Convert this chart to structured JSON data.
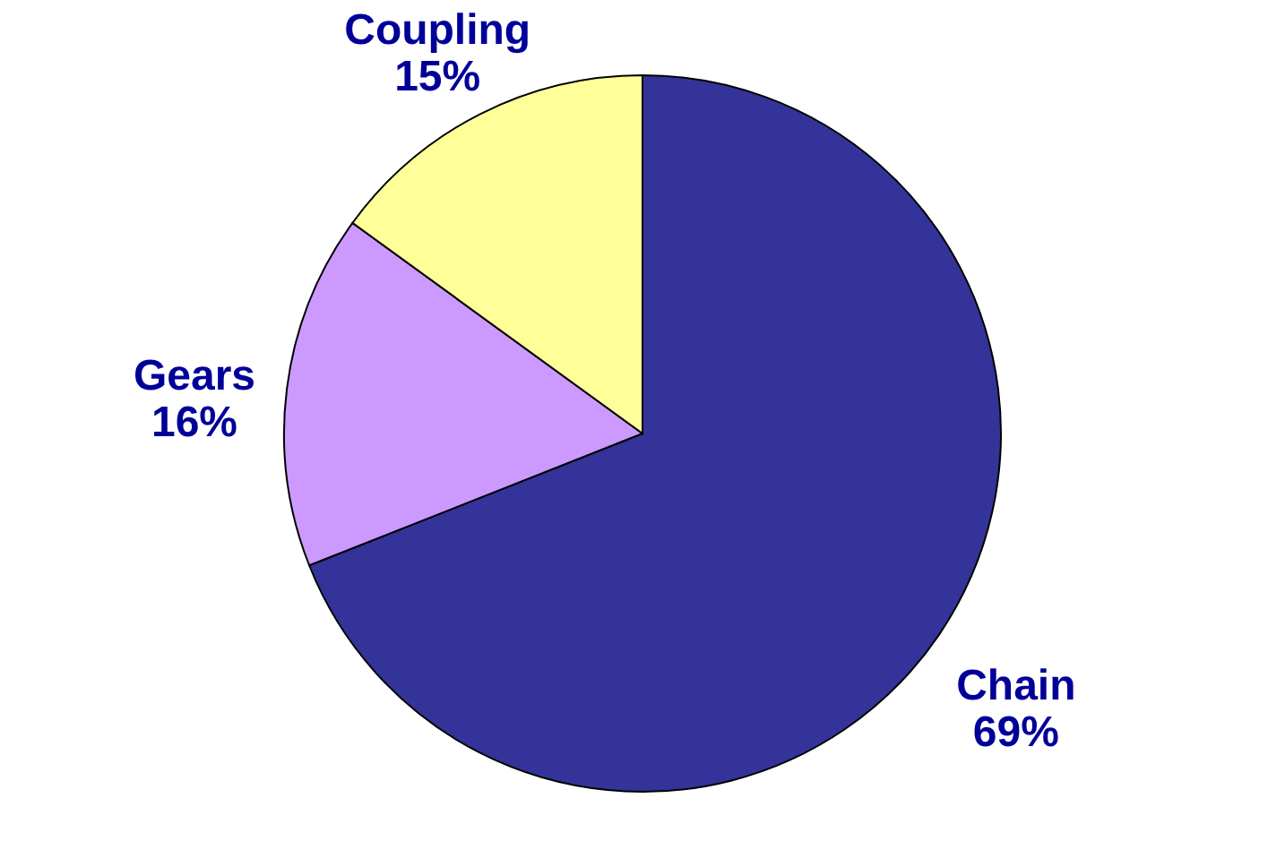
{
  "chart_data": {
    "type": "pie",
    "categories": [
      "Chain",
      "Gears",
      "Coupling"
    ],
    "values": [
      69,
      16,
      15
    ],
    "colors": [
      "#333399",
      "#cc99ff",
      "#ffff99"
    ],
    "data_labels": true,
    "value_labels": [
      "69%",
      "16%",
      "15%"
    ]
  }
}
